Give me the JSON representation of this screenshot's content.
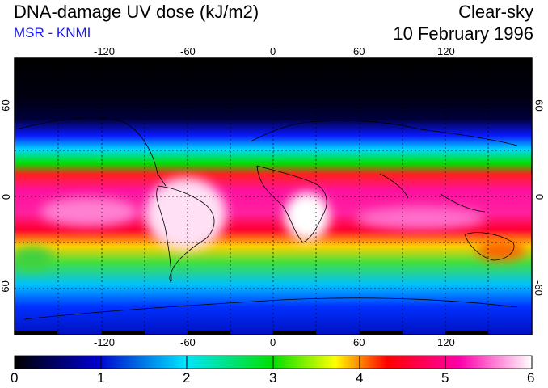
{
  "header": {
    "title": "DNA-damage UV dose (kJ/m2)",
    "subtitle": "MSR - KNMI",
    "condition": "Clear-sky",
    "date": "10 February 1996"
  },
  "map": {
    "lon_ticks": [
      "-120",
      "-60",
      "0",
      "60",
      "120"
    ],
    "lat_ticks": [
      "60",
      "0",
      "-60"
    ],
    "lon_values": [
      -120,
      -60,
      0,
      60,
      120
    ],
    "lat_values": [
      60,
      0,
      -60
    ],
    "lon_range": [
      -180,
      180
    ],
    "lat_range": [
      -90,
      90
    ],
    "gridlines": "dotted, every 30 degrees"
  },
  "colorbar": {
    "labels": [
      "0",
      "1",
      "2",
      "3",
      "4",
      "5",
      "6"
    ],
    "range": [
      0,
      6
    ],
    "colors": [
      "#000000",
      "#0000cc",
      "#00e5ff",
      "#00e000",
      "#ffff00",
      "#ff0000",
      "#ff00aa",
      "#ffffff"
    ]
  }
}
